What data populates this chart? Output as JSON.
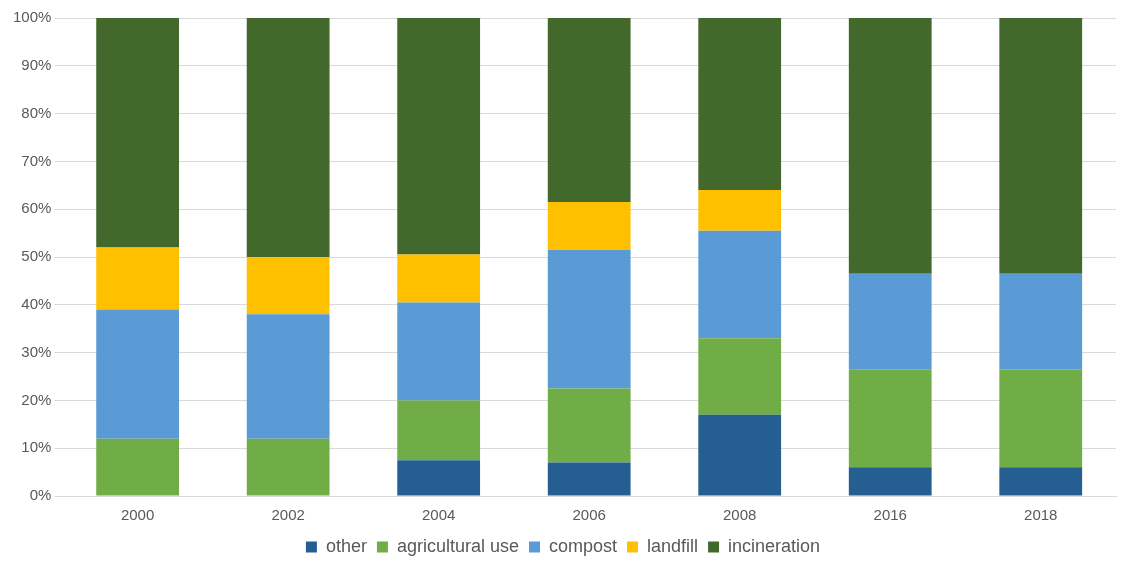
{
  "chart_data": {
    "type": "bar",
    "stacked": true,
    "categories": [
      "2000",
      "2002",
      "2004",
      "2006",
      "2008",
      "2016",
      "2018"
    ],
    "series": [
      {
        "name": "other",
        "color": "#255e91",
        "values": [
          0,
          0,
          7.5,
          7,
          17,
          6,
          6
        ]
      },
      {
        "name": "agricultural use",
        "color": "#70ad47",
        "values": [
          12,
          12,
          12.5,
          15.5,
          16,
          20.5,
          20.5
        ]
      },
      {
        "name": "compost",
        "color": "#5b9bd5",
        "values": [
          27,
          26,
          20.5,
          29,
          22.5,
          20,
          20
        ]
      },
      {
        "name": "landfill",
        "color": "#ffc000",
        "values": [
          13,
          12,
          10,
          10,
          8.5,
          0,
          0
        ]
      },
      {
        "name": "incineration",
        "color": "#43682b",
        "values": [
          48,
          50,
          49.5,
          38.5,
          36,
          53.5,
          53.5
        ]
      }
    ],
    "ylim": [
      0,
      100
    ],
    "yticks": [
      {
        "value": 0,
        "label": "0%"
      },
      {
        "value": 10,
        "label": "10%"
      },
      {
        "value": 20,
        "label": "20%"
      },
      {
        "value": 30,
        "label": "30%"
      },
      {
        "value": 40,
        "label": "40%"
      },
      {
        "value": 50,
        "label": "50%"
      },
      {
        "value": 60,
        "label": "60%"
      },
      {
        "value": 70,
        "label": "70%"
      },
      {
        "value": 80,
        "label": "80%"
      },
      {
        "value": 90,
        "label": "90%"
      },
      {
        "value": 100,
        "label": "100%"
      }
    ],
    "grid": "y",
    "legend": "bottom"
  }
}
